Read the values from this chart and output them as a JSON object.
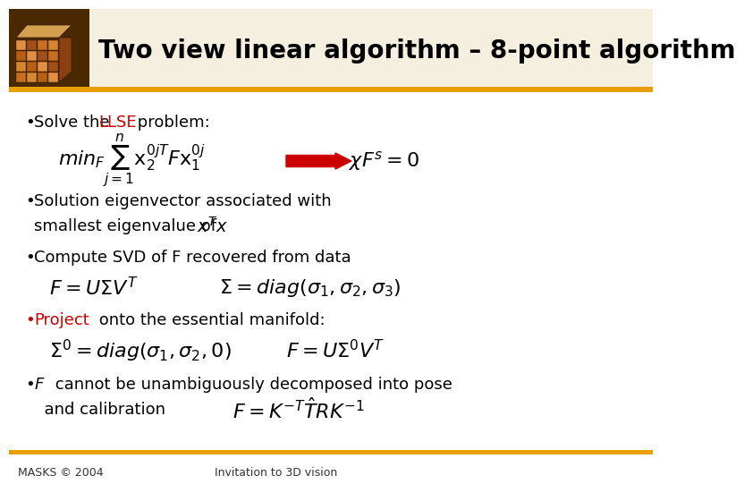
{
  "title": "Two view linear algorithm – 8-point algorithm",
  "title_fontsize": 20,
  "title_color": "#000000",
  "header_bar_color": "#E8A000",
  "background_color": "#FFFFFF",
  "red_color": "#CC0000",
  "footer_left": "MASKS © 2004",
  "footer_right": "Invitation to 3D vision",
  "footer_fontsize": 9,
  "bullet1_plain": "Solve the ",
  "bullet1_llse": "LLSE",
  "bullet1_rest": " problem:",
  "bullet2_line1": "Solution eigenvector associated with",
  "bullet2_line2": "smallest eigenvalue of ",
  "bullet3_text": "Compute SVD of F recovered from data",
  "bullet4_project": "Project",
  "bullet4_rest": " onto the essential manifold:",
  "bullet5_italic": "F",
  "bullet5_rest": " cannot be unambiguously decomposed into pose",
  "bullet5_line2": "  and calibration",
  "text_fontsize": 13,
  "eq_fontsize": 14
}
